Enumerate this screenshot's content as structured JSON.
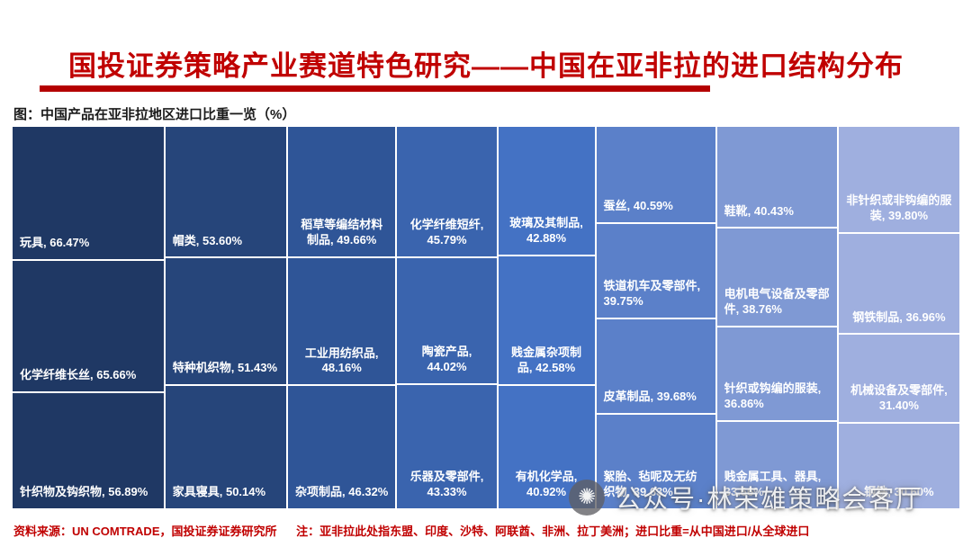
{
  "header": {
    "title": "国投证券策略产业赛道特色研究——中国在亚非拉的进口结构分布",
    "accent_color": "#c00000"
  },
  "caption": "图：中国产品在亚非拉地区进口比重一览（%）",
  "chart_data": {
    "type": "treemap",
    "title": "中国产品在亚非拉地区进口比重一览（%）",
    "unit": "%",
    "note": "area/shade ordered by import share, darkest = highest",
    "columns": [
      {
        "color": "#1f3864",
        "width": 16.0,
        "cells": [
          {
            "label": "玩具",
            "value": 66.47
          },
          {
            "label": "化学纤维长丝",
            "value": 65.66
          },
          {
            "label": "针织物及钩织物",
            "value": 56.89
          }
        ]
      },
      {
        "color": "#26457a",
        "width": 12.8,
        "cells": [
          {
            "label": "帽类",
            "value": 53.6
          },
          {
            "label": "特种机织物",
            "value": 51.43
          },
          {
            "label": "家具寝具",
            "value": 50.14
          }
        ]
      },
      {
        "color": "#2f5597",
        "width": 11.4,
        "cells": [
          {
            "label": "稻草等编结材料制品",
            "value": 49.66
          },
          {
            "label": "工业用纺织品",
            "value": 48.16
          },
          {
            "label": "杂项制品",
            "value": 46.32
          }
        ]
      },
      {
        "color": "#3a64ae",
        "width": 10.5,
        "cells": [
          {
            "label": "化学纤维短纤",
            "value": 45.79
          },
          {
            "label": "陶瓷产品",
            "value": 44.02
          },
          {
            "label": "乐器及零部件",
            "value": 43.33
          }
        ]
      },
      {
        "color": "#4472c4",
        "width": 10.2,
        "cells": [
          {
            "label": "玻璃及其制品",
            "value": 42.88
          },
          {
            "label": "贱金属杂项制品",
            "value": 42.58
          },
          {
            "label": "有机化学品",
            "value": 40.92
          }
        ]
      },
      {
        "color": "#5b80c9",
        "width": 12.6,
        "cells": [
          {
            "label": "蚕丝",
            "value": 40.59
          },
          {
            "label": "铁道机车及零部件",
            "value": 39.75
          },
          {
            "label": "皮革制品",
            "value": 39.68
          },
          {
            "label": "絮胎、毡呢及无纺织物",
            "value": 39.63
          }
        ]
      },
      {
        "color": "#7f99d4",
        "width": 12.7,
        "cells": [
          {
            "label": "鞋靴",
            "value": 40.43
          },
          {
            "label": "电机电气设备及零部件",
            "value": 38.76
          },
          {
            "label": "针织或钩编的服装",
            "value": 36.86
          },
          {
            "label": "贱金属工具、器具",
            "value": 33.66
          }
        ]
      },
      {
        "color": "#9fafdf",
        "width": 12.8,
        "cells": [
          {
            "label": "非针织或非钩编的服装",
            "value": 39.8
          },
          {
            "label": "钢铁制品",
            "value": 36.96
          },
          {
            "label": "机械设备及零部件",
            "value": 31.4
          },
          {
            "label": "钢铁",
            "value": 30.6
          }
        ]
      }
    ]
  },
  "footer": {
    "source": "资料来源：UN COMTRADE，国投证券证券研究所",
    "note": "注：亚非拉此处指东盟、印度、沙特、阿联酋、非洲、拉丁美洲；进口比重=从中国进口/从全球进口"
  },
  "watermark": {
    "icon": "asterisk-flower-icon",
    "text": "公众号·林荣雄策略会客厅"
  }
}
